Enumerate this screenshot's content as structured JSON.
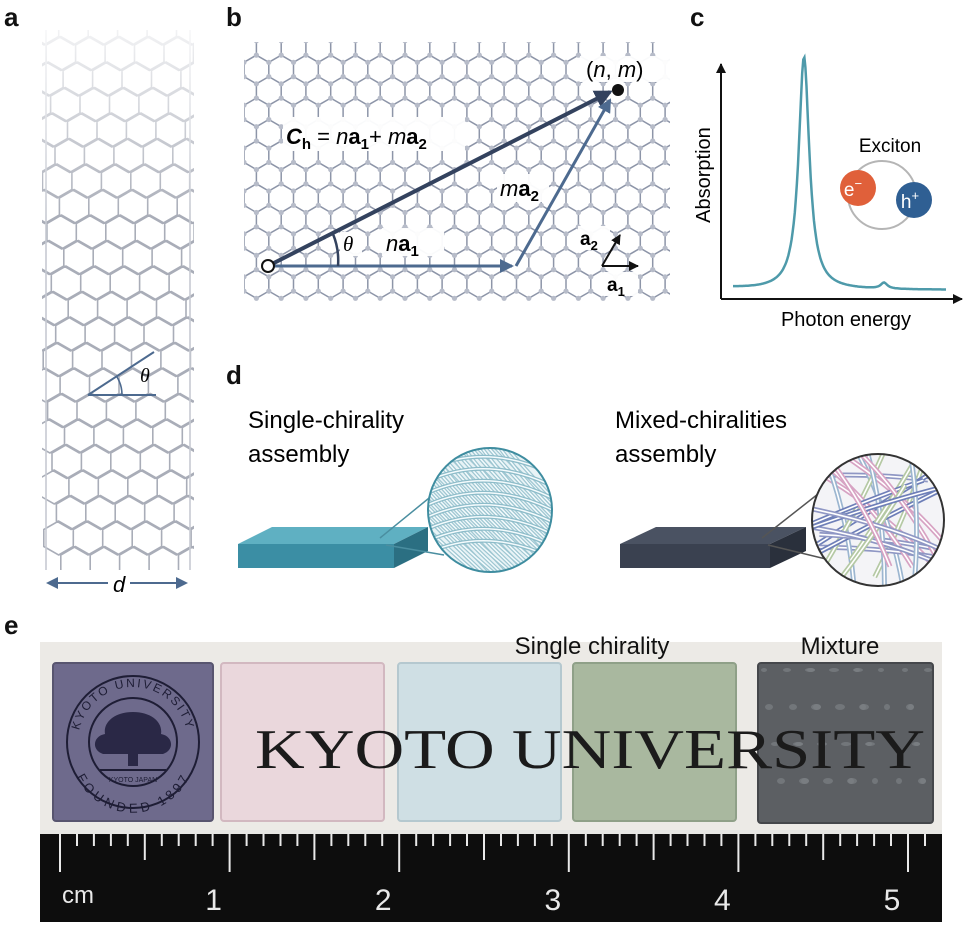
{
  "panels": {
    "a": "a",
    "b": "b",
    "c": "c",
    "d": "d",
    "e": "e"
  },
  "panel_a": {
    "theta": "θ",
    "diameter": "d"
  },
  "panel_b": {
    "point": "(n, m)",
    "ch_C": "C",
    "ch_h": "h",
    "ch_eq": " = ",
    "n1": "n",
    "a_bold": "a",
    "sub1": "1",
    "sub2": "2",
    "plus": "+ ",
    "m1": "m",
    "theta": "θ",
    "na1_n": "n",
    "ma2_m": "m"
  },
  "panel_c": {
    "xlabel": "Photon energy",
    "ylabel": "Absorption",
    "exciton": "Exciton",
    "electron": "e",
    "electron_sup": "−",
    "hole": "h",
    "hole_sup": "+",
    "colors": {
      "curve": "#4e9aaa",
      "electron": "#e0603a",
      "hole": "#2f5f93",
      "ring": "#b5b5b5"
    }
  },
  "panel_d": {
    "single_line1": "Single-chirality",
    "single_line2": "assembly",
    "mixed_line1": "Mixed-chiralities",
    "mixed_line2": "assembly",
    "colors": {
      "single_block": "#3b8ea4",
      "mixed_block": "#3a4150"
    }
  },
  "panel_e": {
    "single_chirality": "Single chirality",
    "mixture": "Mixture",
    "background_text": "KYOTO UNIVERSITY",
    "seal_top": "KYOTO UNIVERSITY",
    "seal_bottom": "FOUNDED 1897",
    "seal_inner": "KYOTO JAPAN",
    "ruler_unit": "cm",
    "ruler_numbers": [
      "1",
      "2",
      "3",
      "4",
      "5"
    ],
    "film_colors": [
      "#6e6a8c",
      "#ead7dc",
      "#cfdfe4",
      "#a9b89f",
      "#5c5f63"
    ]
  }
}
